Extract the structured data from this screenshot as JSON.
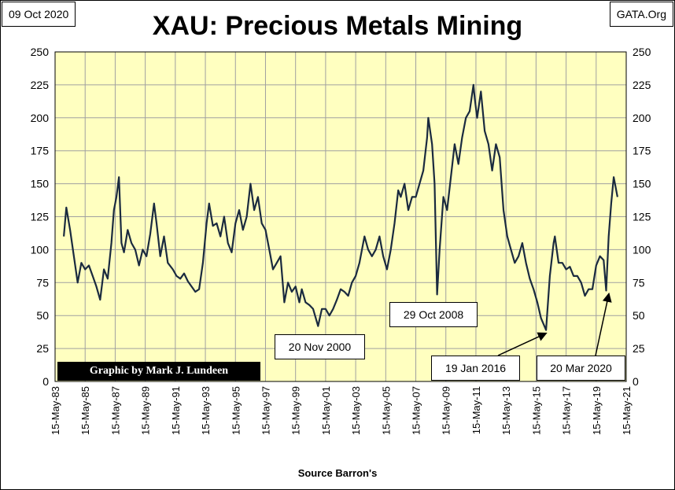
{
  "header": {
    "date": "09 Oct 2020",
    "source_site": "GATA.Org",
    "title": "XAU: Precious Metals Mining"
  },
  "footer": {
    "source": "Source Barron's",
    "credit": "Graphic by Mark J. Lundeen"
  },
  "colors": {
    "plot_background": "#FFFFC0",
    "line": "#1a2a3f",
    "grid": "#a0a0a0"
  },
  "annotations": [
    {
      "text": "20 Nov 2000",
      "x": "2000-11-20",
      "y": 42
    },
    {
      "text": "29 Oct 2008",
      "x": "2008-10-29",
      "y": 66
    },
    {
      "text": "19 Jan 2016",
      "x": "2016-01-19",
      "y": 39
    },
    {
      "text": "20 Mar 2020",
      "x": "2020-03-20",
      "y": 69
    }
  ],
  "chart_data": {
    "type": "line",
    "title": "XAU: Precious Metals Mining",
    "xlabel": "",
    "ylabel": "",
    "ylim": [
      0,
      250
    ],
    "xlim": [
      "1983-05-15",
      "2021-05-15"
    ],
    "y_ticks": [
      0,
      25,
      50,
      75,
      100,
      125,
      150,
      175,
      200,
      225,
      250
    ],
    "x_tick_labels": [
      "15-May-83",
      "15-May-85",
      "15-May-87",
      "15-May-89",
      "15-May-91",
      "15-May-93",
      "15-May-95",
      "15-May-97",
      "15-May-99",
      "15-May-01",
      "15-May-03",
      "15-May-05",
      "15-May-07",
      "15-May-09",
      "15-May-11",
      "15-May-13",
      "15-May-15",
      "15-May-17",
      "15-May-19",
      "15-May-21"
    ],
    "grid": true,
    "legend": "none",
    "series": [
      {
        "x": [
          "1983-12",
          "1984-02",
          "1984-05",
          "1984-08",
          "1984-11",
          "1985-02",
          "1985-05",
          "1985-08",
          "1985-11",
          "1986-02",
          "1986-05",
          "1986-08",
          "1986-11",
          "1987-02",
          "1987-04",
          "1987-06",
          "1987-08",
          "1987-10",
          "1987-12",
          "1988-03",
          "1988-06",
          "1988-09",
          "1988-12",
          "1989-03",
          "1989-06",
          "1989-09",
          "1989-12",
          "1990-02",
          "1990-05",
          "1990-08",
          "1990-11",
          "1991-03",
          "1991-06",
          "1991-09",
          "1991-12",
          "1992-03",
          "1992-06",
          "1992-09",
          "1992-12",
          "1993-03",
          "1993-06",
          "1993-08",
          "1993-11",
          "1994-02",
          "1994-05",
          "1994-08",
          "1994-11",
          "1995-02",
          "1995-05",
          "1995-08",
          "1995-11",
          "1996-02",
          "1996-05",
          "1996-08",
          "1996-11",
          "1997-02",
          "1997-05",
          "1997-08",
          "1997-11",
          "1998-02",
          "1998-05",
          "1998-08",
          "1998-11",
          "1999-02",
          "1999-05",
          "1999-08",
          "1999-10",
          "2000-01",
          "2000-04",
          "2000-07",
          "2000-11",
          "2001-02",
          "2001-05",
          "2001-08",
          "2001-11",
          "2002-02",
          "2002-05",
          "2002-08",
          "2002-11",
          "2003-02",
          "2003-05",
          "2003-08",
          "2003-12",
          "2004-03",
          "2004-06",
          "2004-09",
          "2004-12",
          "2005-03",
          "2005-06",
          "2005-09",
          "2005-12",
          "2006-03",
          "2006-05",
          "2006-08",
          "2006-11",
          "2007-02",
          "2007-05",
          "2007-08",
          "2007-11",
          "2008-02",
          "2008-03",
          "2008-06",
          "2008-08",
          "2008-10",
          "2008-12",
          "2009-03",
          "2009-06",
          "2009-09",
          "2009-12",
          "2010-03",
          "2010-06",
          "2010-09",
          "2010-12",
          "2011-03",
          "2011-04",
          "2011-06",
          "2011-09",
          "2011-12",
          "2012-03",
          "2012-06",
          "2012-09",
          "2012-12",
          "2013-03",
          "2013-06",
          "2013-09",
          "2013-12",
          "2014-03",
          "2014-06",
          "2014-09",
          "2014-12",
          "2015-03",
          "2015-06",
          "2015-09",
          "2016-01",
          "2016-04",
          "2016-07",
          "2016-08",
          "2016-11",
          "2017-02",
          "2017-05",
          "2017-08",
          "2017-11",
          "2018-02",
          "2018-05",
          "2018-08",
          "2018-11",
          "2019-02",
          "2019-05",
          "2019-08",
          "2019-11",
          "2020-01",
          "2020-03",
          "2020-05",
          "2020-07",
          "2020-08",
          "2020-10"
        ],
        "values": [
          110,
          132,
          115,
          95,
          75,
          90,
          85,
          88,
          80,
          72,
          62,
          85,
          78,
          105,
          130,
          140,
          155,
          105,
          98,
          115,
          105,
          100,
          88,
          100,
          95,
          112,
          135,
          120,
          95,
          110,
          90,
          85,
          80,
          78,
          82,
          76,
          72,
          68,
          70,
          90,
          120,
          135,
          118,
          120,
          110,
          125,
          105,
          98,
          120,
          130,
          115,
          125,
          150,
          130,
          140,
          120,
          115,
          100,
          85,
          90,
          95,
          60,
          75,
          68,
          72,
          60,
          70,
          60,
          58,
          55,
          42,
          55,
          55,
          50,
          55,
          62,
          70,
          68,
          65,
          75,
          80,
          90,
          110,
          100,
          95,
          100,
          110,
          95,
          85,
          100,
          120,
          145,
          140,
          150,
          130,
          140,
          140,
          150,
          160,
          185,
          200,
          180,
          150,
          66,
          100,
          140,
          130,
          155,
          180,
          165,
          185,
          200,
          205,
          225,
          215,
          200,
          220,
          190,
          180,
          160,
          180,
          170,
          130,
          110,
          100,
          90,
          95,
          105,
          90,
          78,
          70,
          60,
          48,
          39,
          80,
          105,
          110,
          90,
          90,
          85,
          87,
          80,
          80,
          75,
          65,
          70,
          70,
          88,
          95,
          92,
          69,
          110,
          135,
          155,
          150,
          140
        ]
      }
    ]
  }
}
